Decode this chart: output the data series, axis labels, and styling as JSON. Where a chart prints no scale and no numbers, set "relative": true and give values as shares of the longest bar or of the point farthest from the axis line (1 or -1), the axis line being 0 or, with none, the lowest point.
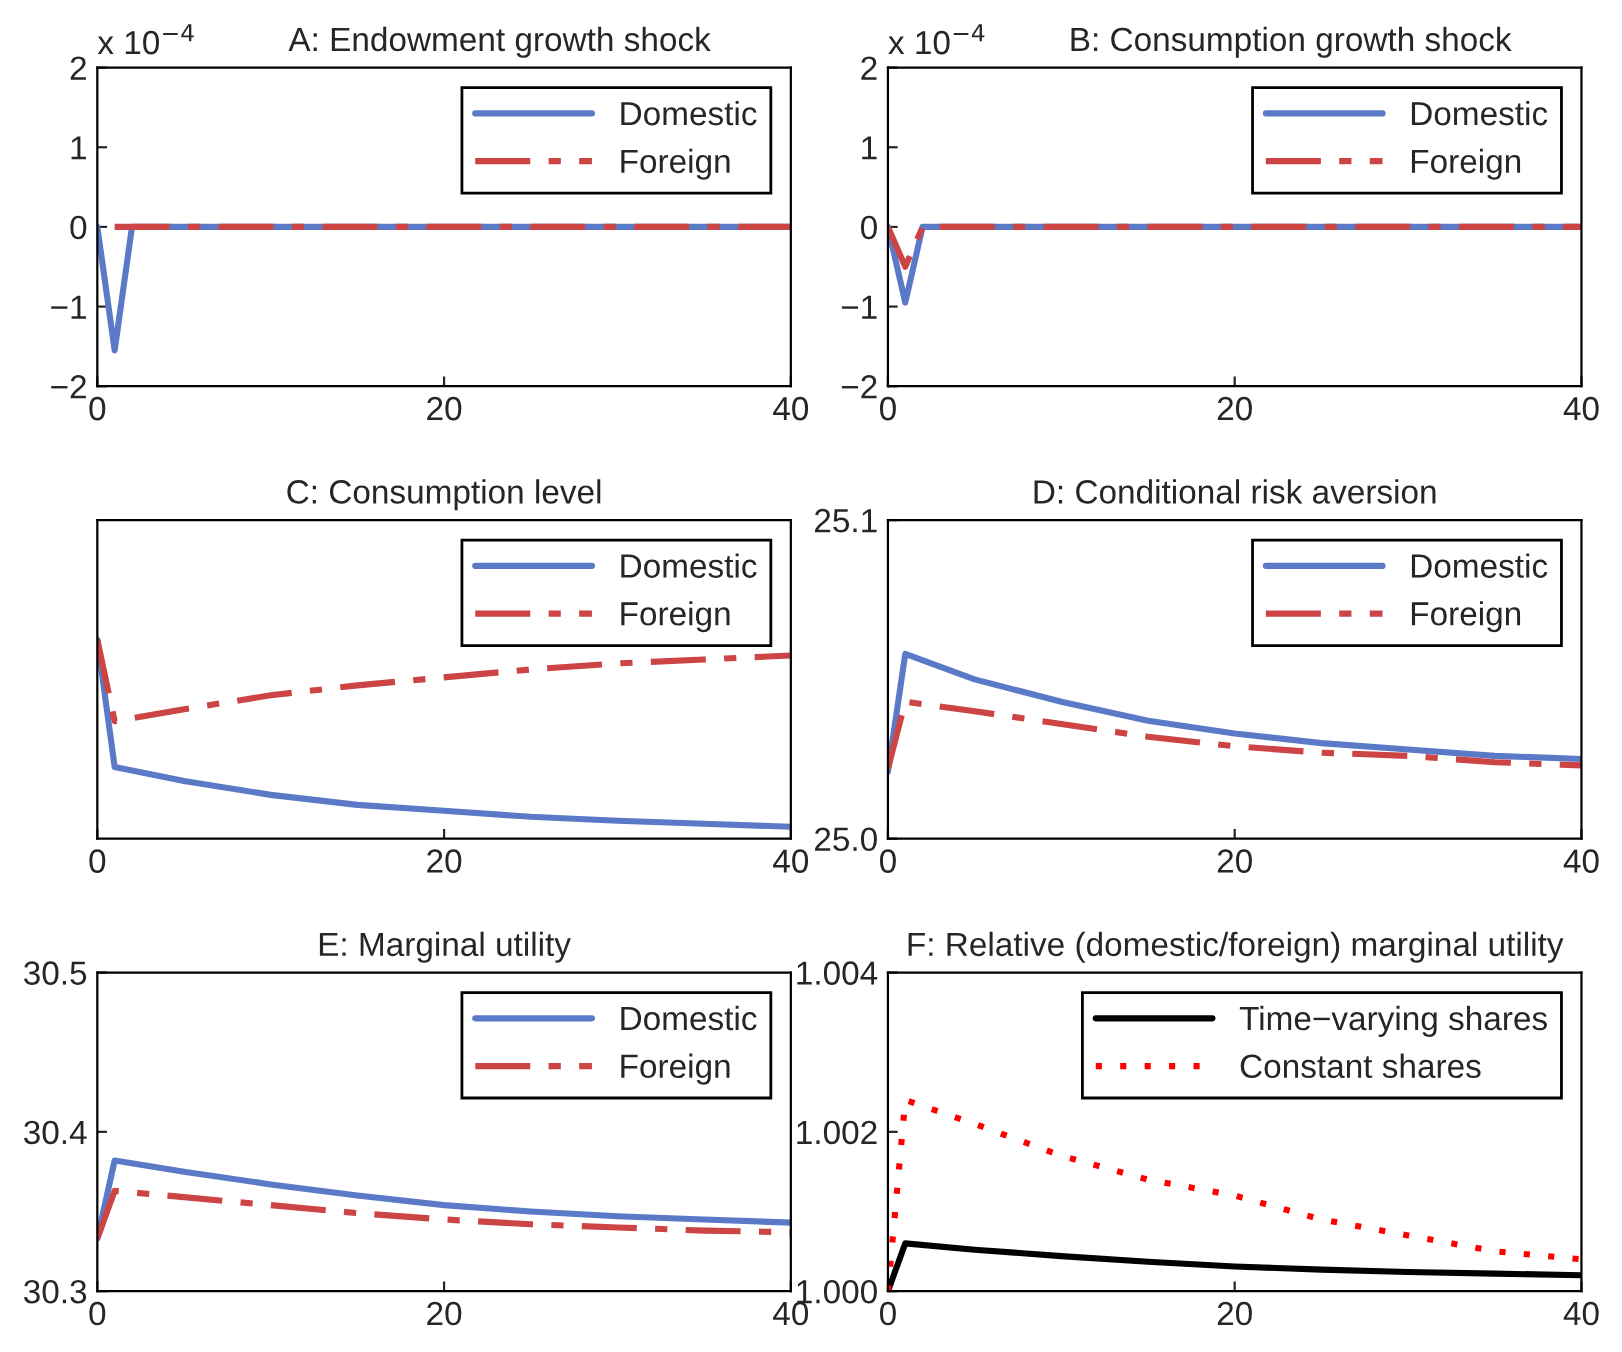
{
  "chart_data": [
    {
      "type": "line",
      "title": "A: Endowment growth shock",
      "annotations": [
        "x 10$^{−4}$"
      ],
      "xlim": [
        0,
        40
      ],
      "xticks": [
        0,
        20,
        40
      ],
      "ylim": [
        -2,
        2
      ],
      "yticks": [
        {
          "value": -2,
          "label": "−2"
        },
        {
          "value": -1,
          "label": "−1"
        },
        0,
        1,
        2
      ],
      "legend": "top right",
      "series": [
        {
          "name": "Domestic",
          "color": "#5a7ac8",
          "line_style": "solid",
          "x": [
            0,
            1,
            2,
            40
          ],
          "values": [
            0,
            -1.55,
            0,
            0
          ]
        },
        {
          "name": "Foreign",
          "color": "#cc4444",
          "line_style": "dashed",
          "x": [
            1,
            40
          ],
          "values": [
            0,
            0
          ]
        }
      ]
    },
    {
      "type": "line",
      "title": "B: Consumption growth shock",
      "annotations": [
        "x 10$^{−4}$"
      ],
      "xlim": [
        0,
        40
      ],
      "xticks": [
        0,
        20,
        40
      ],
      "ylim": [
        -2,
        2
      ],
      "yticks": [
        {
          "value": -2,
          "label": "−2"
        },
        {
          "value": -1,
          "label": "−1"
        },
        0,
        1,
        2
      ],
      "legend": "top right",
      "series": [
        {
          "name": "Domestic",
          "color": "#5a7ac8",
          "line_style": "solid",
          "x": [
            0,
            1,
            2,
            40
          ],
          "values": [
            0,
            -0.95,
            0,
            0
          ]
        },
        {
          "name": "Foreign",
          "color": "#cc4444",
          "line_style": "dashed",
          "x": [
            0,
            1,
            2,
            40
          ],
          "values": [
            0,
            -0.5,
            0,
            0
          ]
        }
      ]
    },
    {
      "type": "line",
      "title": "C: Consumption level",
      "relative": true,
      "tick_labels": "x",
      "xlim": [
        0,
        40
      ],
      "xticks": [
        0,
        20,
        40
      ],
      "legend": "top right",
      "series": [
        {
          "name": "Domestic",
          "color": "#5a7ac8",
          "line_style": "solid",
          "x": [
            0,
            1,
            5,
            10,
            15,
            20,
            25,
            30,
            35,
            40
          ],
          "values": [
            1,
            0.36,
            0.29,
            0.22,
            0.17,
            0.14,
            0.11,
            0.09,
            0.075,
            0.06
          ]
        },
        {
          "name": "Foreign",
          "color": "#cc4444",
          "line_style": "dashed",
          "x": [
            0,
            1,
            5,
            10,
            15,
            20,
            25,
            30,
            35,
            40
          ],
          "values": [
            1,
            0.59,
            0.65,
            0.72,
            0.77,
            0.81,
            0.85,
            0.88,
            0.9,
            0.92
          ]
        }
      ]
    },
    {
      "type": "line",
      "title": "D: Conditional risk aversion",
      "xlim": [
        0,
        40
      ],
      "xticks": [
        0,
        20,
        40
      ],
      "ylim": [
        25.0,
        25.1
      ],
      "yticks": [
        {
          "value": 25.0,
          "label": "25.0"
        },
        {
          "value": 25.1,
          "label": "25.1"
        }
      ],
      "legend": "top right",
      "series": [
        {
          "name": "Domestic",
          "color": "#5a7ac8",
          "line_style": "solid",
          "x": [
            0,
            1,
            5,
            10,
            15,
            20,
            25,
            30,
            35,
            40
          ],
          "values": [
            25.021,
            25.058,
            25.05,
            25.043,
            25.037,
            25.033,
            25.03,
            25.028,
            25.026,
            25.025
          ]
        },
        {
          "name": "Foreign",
          "color": "#cc4444",
          "line_style": "dashed",
          "x": [
            0,
            1,
            5,
            10,
            15,
            20,
            25,
            30,
            35,
            40
          ],
          "values": [
            25.022,
            25.043,
            25.04,
            25.036,
            25.032,
            25.029,
            25.027,
            25.026,
            25.024,
            25.023
          ]
        }
      ]
    },
    {
      "type": "line",
      "title": "E: Marginal utility",
      "xlim": [
        0,
        40
      ],
      "xticks": [
        0,
        20,
        40
      ],
      "ylim": [
        30.3,
        30.5
      ],
      "yticks": [
        30.3,
        30.4,
        30.5
      ],
      "legend": "top right",
      "series": [
        {
          "name": "Domestic",
          "color": "#5a7ac8",
          "line_style": "solid",
          "x": [
            0,
            1,
            5,
            10,
            15,
            20,
            25,
            30,
            35,
            40
          ],
          "values": [
            30.333,
            30.382,
            30.375,
            30.367,
            30.36,
            30.354,
            30.35,
            30.347,
            30.345,
            30.343
          ]
        },
        {
          "name": "Foreign",
          "color": "#cc4444",
          "line_style": "dashed",
          "x": [
            0,
            1,
            5,
            10,
            15,
            20,
            25,
            30,
            35,
            40
          ],
          "values": [
            30.333,
            30.363,
            30.359,
            30.354,
            30.349,
            30.345,
            30.342,
            30.34,
            30.338,
            30.337
          ]
        }
      ]
    },
    {
      "type": "line",
      "title": "F: Relative (domestic/foreign) marginal utility",
      "xlim": [
        0,
        40
      ],
      "xticks": [
        0,
        20,
        40
      ],
      "ylim": [
        1.0,
        1.004
      ],
      "yticks": [
        {
          "value": 1.0,
          "label": "1.000"
        },
        {
          "value": 1.002,
          "label": "1.002"
        },
        {
          "value": 1.004,
          "label": "1.004"
        }
      ],
      "legend": "top right",
      "series": [
        {
          "name": "Time−varying shares",
          "color": "#000000",
          "line_style": "solid",
          "x": [
            0,
            1,
            5,
            10,
            15,
            20,
            25,
            30,
            35,
            40
          ],
          "values": [
            1.0,
            1.0006,
            1.00052,
            1.00044,
            1.00037,
            1.00031,
            1.00027,
            1.00024,
            1.00022,
            1.0002
          ]
        },
        {
          "name": "Constant shares",
          "color": "#ff0000",
          "line_style": "dotted",
          "x": [
            0,
            1,
            5,
            10,
            15,
            20,
            25,
            30,
            35,
            40
          ],
          "values": [
            1.0,
            1.0024,
            1.0021,
            1.0017,
            1.0014,
            1.0012,
            1.0009,
            1.0007,
            1.0005,
            1.0004
          ]
        }
      ]
    }
  ]
}
